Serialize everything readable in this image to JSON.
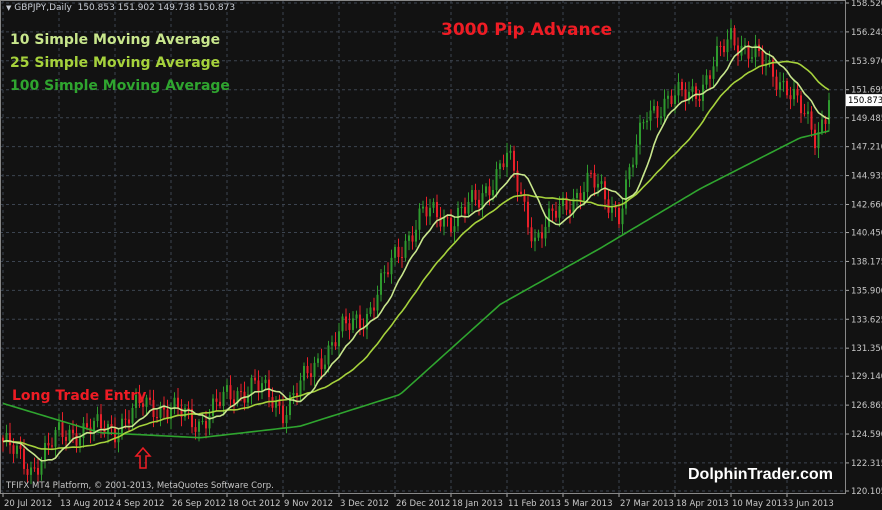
{
  "header": {
    "symbol": "GBPJPY,Daily",
    "ohlc": "150.853 151.902 149.738 150.873"
  },
  "legend": [
    {
      "label": "10 Simple Moving Average",
      "color": "#c8e68c"
    },
    {
      "label": "25 Simple Moving Average",
      "color": "#a6d23c"
    },
    {
      "label": "100 Simple Moving Average",
      "color": "#2fa52f"
    }
  ],
  "annotations": {
    "title": "3000 Pip Advance",
    "entry": "Long Trade Entry",
    "entry_marker": "up-arrow-outline"
  },
  "brand": "DolphinTrader.com",
  "footer": "TFIFX MT4 Platform, © 2001-2013, MetaQuotes Software Corp.",
  "colors": {
    "background": "#121212",
    "bull": "#2e9a2e",
    "bear": "#e8202a",
    "grid": "#3c4450",
    "annotation": "#ee1c24"
  },
  "chart_data": {
    "type": "candlestick",
    "title": "",
    "grid": true,
    "y_range": [
      120.105,
      158.52
    ],
    "y_ticks": [
      "158.520",
      "156.245",
      "153.970",
      "151.695",
      "149.485",
      "147.210",
      "144.935",
      "142.660",
      "140.450",
      "138.175",
      "135.900",
      "133.625",
      "131.350",
      "129.140",
      "126.865",
      "124.590",
      "122.315",
      "120.105"
    ],
    "current_price": "150.873",
    "x_ticks": [
      "20 Jul 2012",
      "13 Aug 2012",
      "4 Sep 2012",
      "26 Sep 2012",
      "18 Oct 2012",
      "9 Nov 2012",
      "3 Dec 2012",
      "26 Dec 2012",
      "18 Jan 2013",
      "11 Feb 2013",
      "5 Mar 2013",
      "27 Mar 2013",
      "18 Apr 2013",
      "10 May 2013",
      "3 Jun 2013"
    ],
    "close_by_tick": [
      [
        0,
        124
      ],
      [
        0.5,
        121.8
      ],
      [
        1,
        124.5
      ],
      [
        1.5,
        125
      ],
      [
        2,
        125
      ],
      [
        2.5,
        127
      ],
      [
        3,
        126.5
      ],
      [
        3.5,
        125.5
      ],
      [
        4,
        127.5
      ],
      [
        4.5,
        128.5
      ],
      [
        5,
        126.5
      ],
      [
        5.5,
        129.5
      ],
      [
        6,
        132.5
      ],
      [
        6.5,
        134
      ],
      [
        7,
        138.5
      ],
      [
        7.5,
        142
      ],
      [
        8,
        141.5
      ],
      [
        8.5,
        143
      ],
      [
        9,
        146.5
      ],
      [
        9.5,
        140
      ],
      [
        10,
        142.5
      ],
      [
        10.5,
        144.5
      ],
      [
        11,
        142
      ],
      [
        11.5,
        150
      ],
      [
        12,
        151
      ],
      [
        12.5,
        152
      ],
      [
        13,
        156
      ],
      [
        13.5,
        154
      ],
      [
        14,
        152
      ],
      [
        14.5,
        148
      ],
      [
        14.8,
        150.873
      ]
    ],
    "sma100_by_tick": [
      [
        0,
        127
      ],
      [
        1.73,
        124.7
      ],
      [
        3.52,
        124.3
      ],
      [
        5.3,
        125.2
      ],
      [
        7.09,
        127.7
      ],
      [
        8.88,
        134.8
      ],
      [
        10.66,
        139.2
      ],
      [
        12.45,
        143.9
      ],
      [
        14.23,
        147.9
      ],
      [
        14.8,
        148.5
      ]
    ]
  }
}
